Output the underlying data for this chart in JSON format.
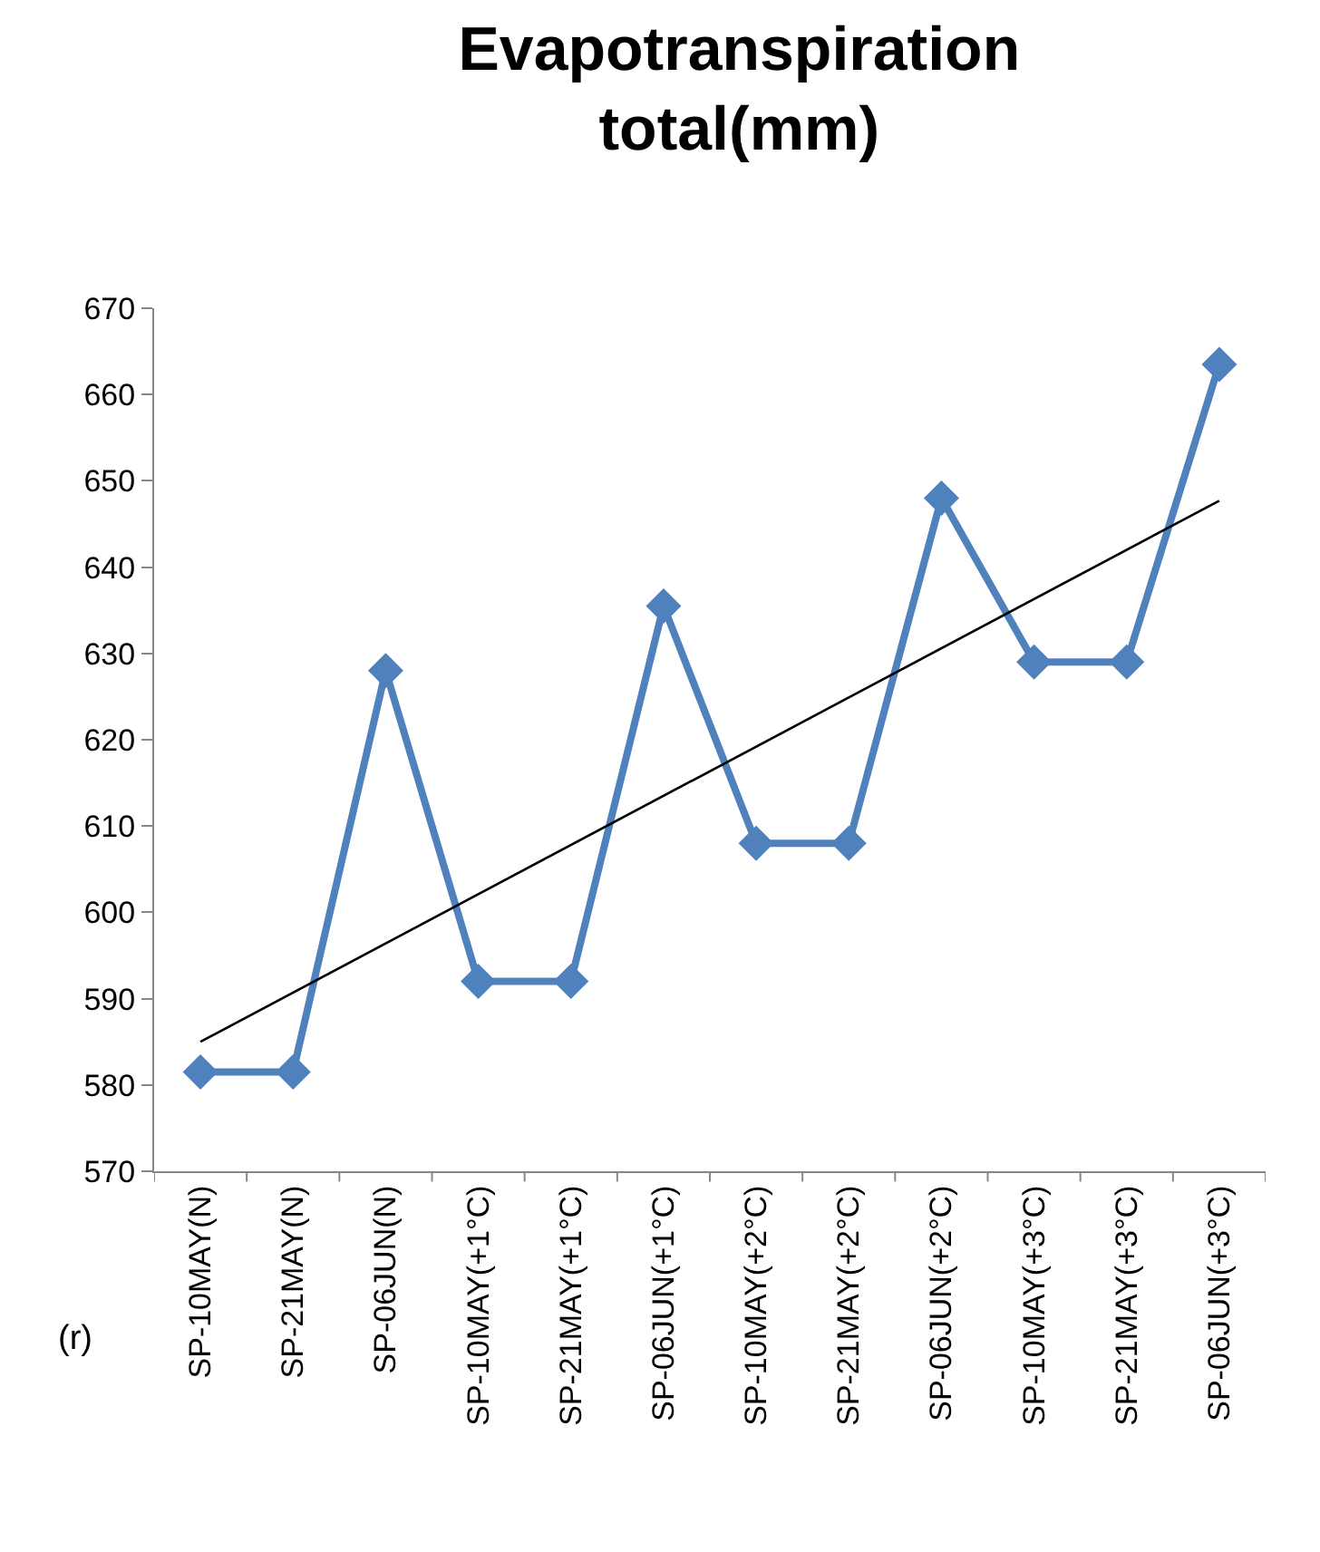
{
  "chart_data": {
    "type": "line",
    "title": "Evapotranspiration total(mm)",
    "categories": [
      "SP-10MAY(N)",
      "SP-21MAY(N)",
      "SP-06JUN(N)",
      "SP-10MAY(+1°C)",
      "SP-21MAY(+1°C)",
      "SP-06JUN(+1°C)",
      "SP-10MAY(+2°C)",
      "SP-21MAY(+2°C)",
      "SP-06JUN(+2°C)",
      "SP-10MAY(+3°C)",
      "SP-21MAY(+3°C)",
      "SP-06JUN(+3°C)"
    ],
    "series": [
      {
        "color": "#4f81bd",
        "values": [
          581.5,
          581.5,
          628,
          592,
          592,
          635.5,
          608,
          608,
          648,
          629,
          629,
          663.5
        ],
        "marker": "diamond"
      },
      {
        "type": "line",
        "color": "#000000",
        "x": [
          "SP-10MAY(N)",
          "SP-06JUN(+3°C)"
        ],
        "values": [
          585,
          647.7
        ],
        "marker": "none"
      }
    ],
    "ylim": [
      570,
      670
    ],
    "yticks": [
      570,
      580,
      590,
      600,
      610,
      620,
      630,
      640,
      650,
      660,
      670
    ],
    "line_style": "solid",
    "annotations": [
      "(r)"
    ]
  }
}
